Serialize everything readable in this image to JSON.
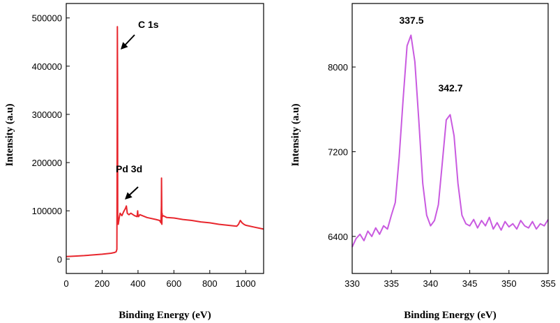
{
  "chart_data": [
    {
      "type": "line",
      "xlabel": "Binding Energy (eV)",
      "ylabel": "Intensity (a.u)",
      "xlim": [
        0,
        1100
      ],
      "ylim": [
        -30000,
        530000
      ],
      "xticks": [
        0,
        200,
        400,
        600,
        800,
        1000
      ],
      "yticks": [
        0,
        100000,
        200000,
        300000,
        400000,
        500000
      ],
      "xtick_labels": [
        "0",
        "200",
        "400",
        "600",
        "800",
        "1000"
      ],
      "ytick_labels": [
        "0",
        "100000",
        "200000",
        "300000",
        "400000",
        "500000"
      ],
      "color": "#e8262d",
      "series": [
        {
          "x": [
            0,
            50,
            100,
            150,
            200,
            250,
            270,
            278,
            282,
            283,
            284,
            285,
            286,
            287,
            288,
            290,
            295,
            300,
            310,
            320,
            330,
            335,
            340,
            345,
            350,
            360,
            380,
            395,
            398,
            400,
            403,
            410,
            450,
            500,
            520,
            528,
            530,
            531,
            532,
            533,
            534,
            536,
            540,
            560,
            600,
            650,
            700,
            750,
            800,
            850,
            900,
            950,
            960,
            970,
            980,
            990,
            1000,
            1050,
            1100
          ],
          "y": [
            5000,
            6000,
            7000,
            8500,
            10000,
            12000,
            13500,
            15000,
            20000,
            120000,
            300000,
            482000,
            370000,
            90000,
            75000,
            72000,
            85000,
            95000,
            90000,
            98000,
            105000,
            110000,
            95000,
            93000,
            92000,
            95000,
            90000,
            88000,
            100000,
            90000,
            88000,
            92000,
            86000,
            82000,
            80000,
            75000,
            110000,
            168000,
            120000,
            72000,
            95000,
            88000,
            90000,
            86000,
            85000,
            82000,
            80000,
            77000,
            75000,
            72000,
            70000,
            68000,
            72000,
            80000,
            75000,
            72000,
            70000,
            66000,
            62000
          ]
        }
      ],
      "annotations": [
        {
          "text": "C 1s",
          "x": 285,
          "y": 482000
        },
        {
          "text": "Pd 3d",
          "x": 335,
          "y": 110000
        }
      ]
    },
    {
      "type": "line",
      "xlabel": "Binding Energy (eV)",
      "ylabel": "Intensity (a.u)",
      "xlim": [
        330,
        355
      ],
      "ylim": [
        6050,
        8600
      ],
      "xticks": [
        330,
        335,
        340,
        345,
        350,
        355
      ],
      "yticks": [
        6400,
        7200,
        8000
      ],
      "xtick_labels": [
        "330",
        "335",
        "340",
        "345",
        "350",
        "355"
      ],
      "ytick_labels": [
        "6400",
        "7200",
        "8000"
      ],
      "color": "#c95ae0",
      "series": [
        {
          "x": [
            330,
            330.5,
            331,
            331.5,
            332,
            332.5,
            333,
            333.5,
            334,
            334.5,
            335,
            335.5,
            336,
            336.5,
            337,
            337.5,
            338,
            338.5,
            339,
            339.5,
            340,
            340.5,
            341,
            341.5,
            342,
            342.5,
            343,
            343.5,
            344,
            344.5,
            345,
            345.5,
            346,
            346.5,
            347,
            347.5,
            348,
            348.5,
            349,
            349.5,
            350,
            350.5,
            351,
            351.5,
            352,
            352.5,
            353,
            353.5,
            354,
            354.5,
            355
          ],
          "y": [
            6300,
            6380,
            6420,
            6360,
            6450,
            6400,
            6480,
            6420,
            6500,
            6470,
            6600,
            6720,
            7150,
            7700,
            8200,
            8300,
            8050,
            7500,
            6900,
            6600,
            6500,
            6550,
            6700,
            7100,
            7500,
            7550,
            7350,
            6900,
            6600,
            6520,
            6500,
            6560,
            6480,
            6550,
            6500,
            6580,
            6470,
            6530,
            6460,
            6540,
            6490,
            6520,
            6470,
            6550,
            6500,
            6480,
            6540,
            6470,
            6520,
            6500,
            6560
          ]
        }
      ],
      "annotations": [
        {
          "text": "337.5",
          "x": 337.5,
          "y": 8300
        },
        {
          "text": "342.7",
          "x": 342.7,
          "y": 7550
        }
      ]
    }
  ]
}
